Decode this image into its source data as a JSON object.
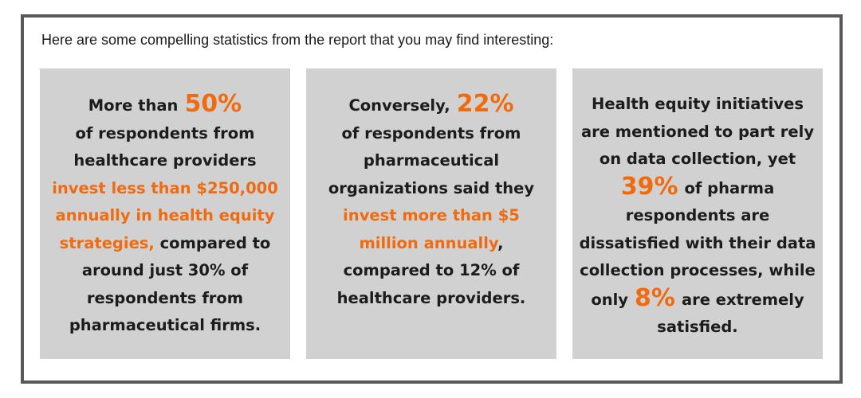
{
  "intro": "Here are some compelling statistics from the report that you may find interesting:",
  "colors": {
    "accent": "#f06a0f",
    "card_bg": "#d1d1d1",
    "border": "#595959",
    "text": "#1c1c1c"
  },
  "cards": [
    {
      "l1_pre": "More than",
      "stat": "50%",
      "l2": "of respondents from",
      "l3": "healthcare providers",
      "l4": "invest less than $250,000",
      "l5": "annually in health equity",
      "l6_orange": "strategies,",
      "l6_rest": "compared to",
      "l7": "around just 30% of",
      "l8": "respondents from",
      "l9": "pharmaceutical firms."
    },
    {
      "l1_pre": "Conversely,",
      "stat": "22%",
      "l2": "of respondents from",
      "l3": "pharmaceutical",
      "l4": "organizations said they",
      "l5": "invest more than $5",
      "l6_orange": "million annually",
      "l6_rest": ",",
      "l7": "compared to 12% of",
      "l8": "healthcare providers."
    },
    {
      "l1": "Health equity initiatives",
      "l2": "are mentioned to part rely",
      "l3": "on data collection, yet",
      "stat": "39%",
      "l4_rest": "of pharma",
      "l5": "respondents are",
      "l6": "dissatisfied with their data",
      "l7": "collection processes, while",
      "l8_pre": "only",
      "stat2": "8%",
      "l8_rest": "are extremely",
      "l9": "satisfied."
    }
  ]
}
